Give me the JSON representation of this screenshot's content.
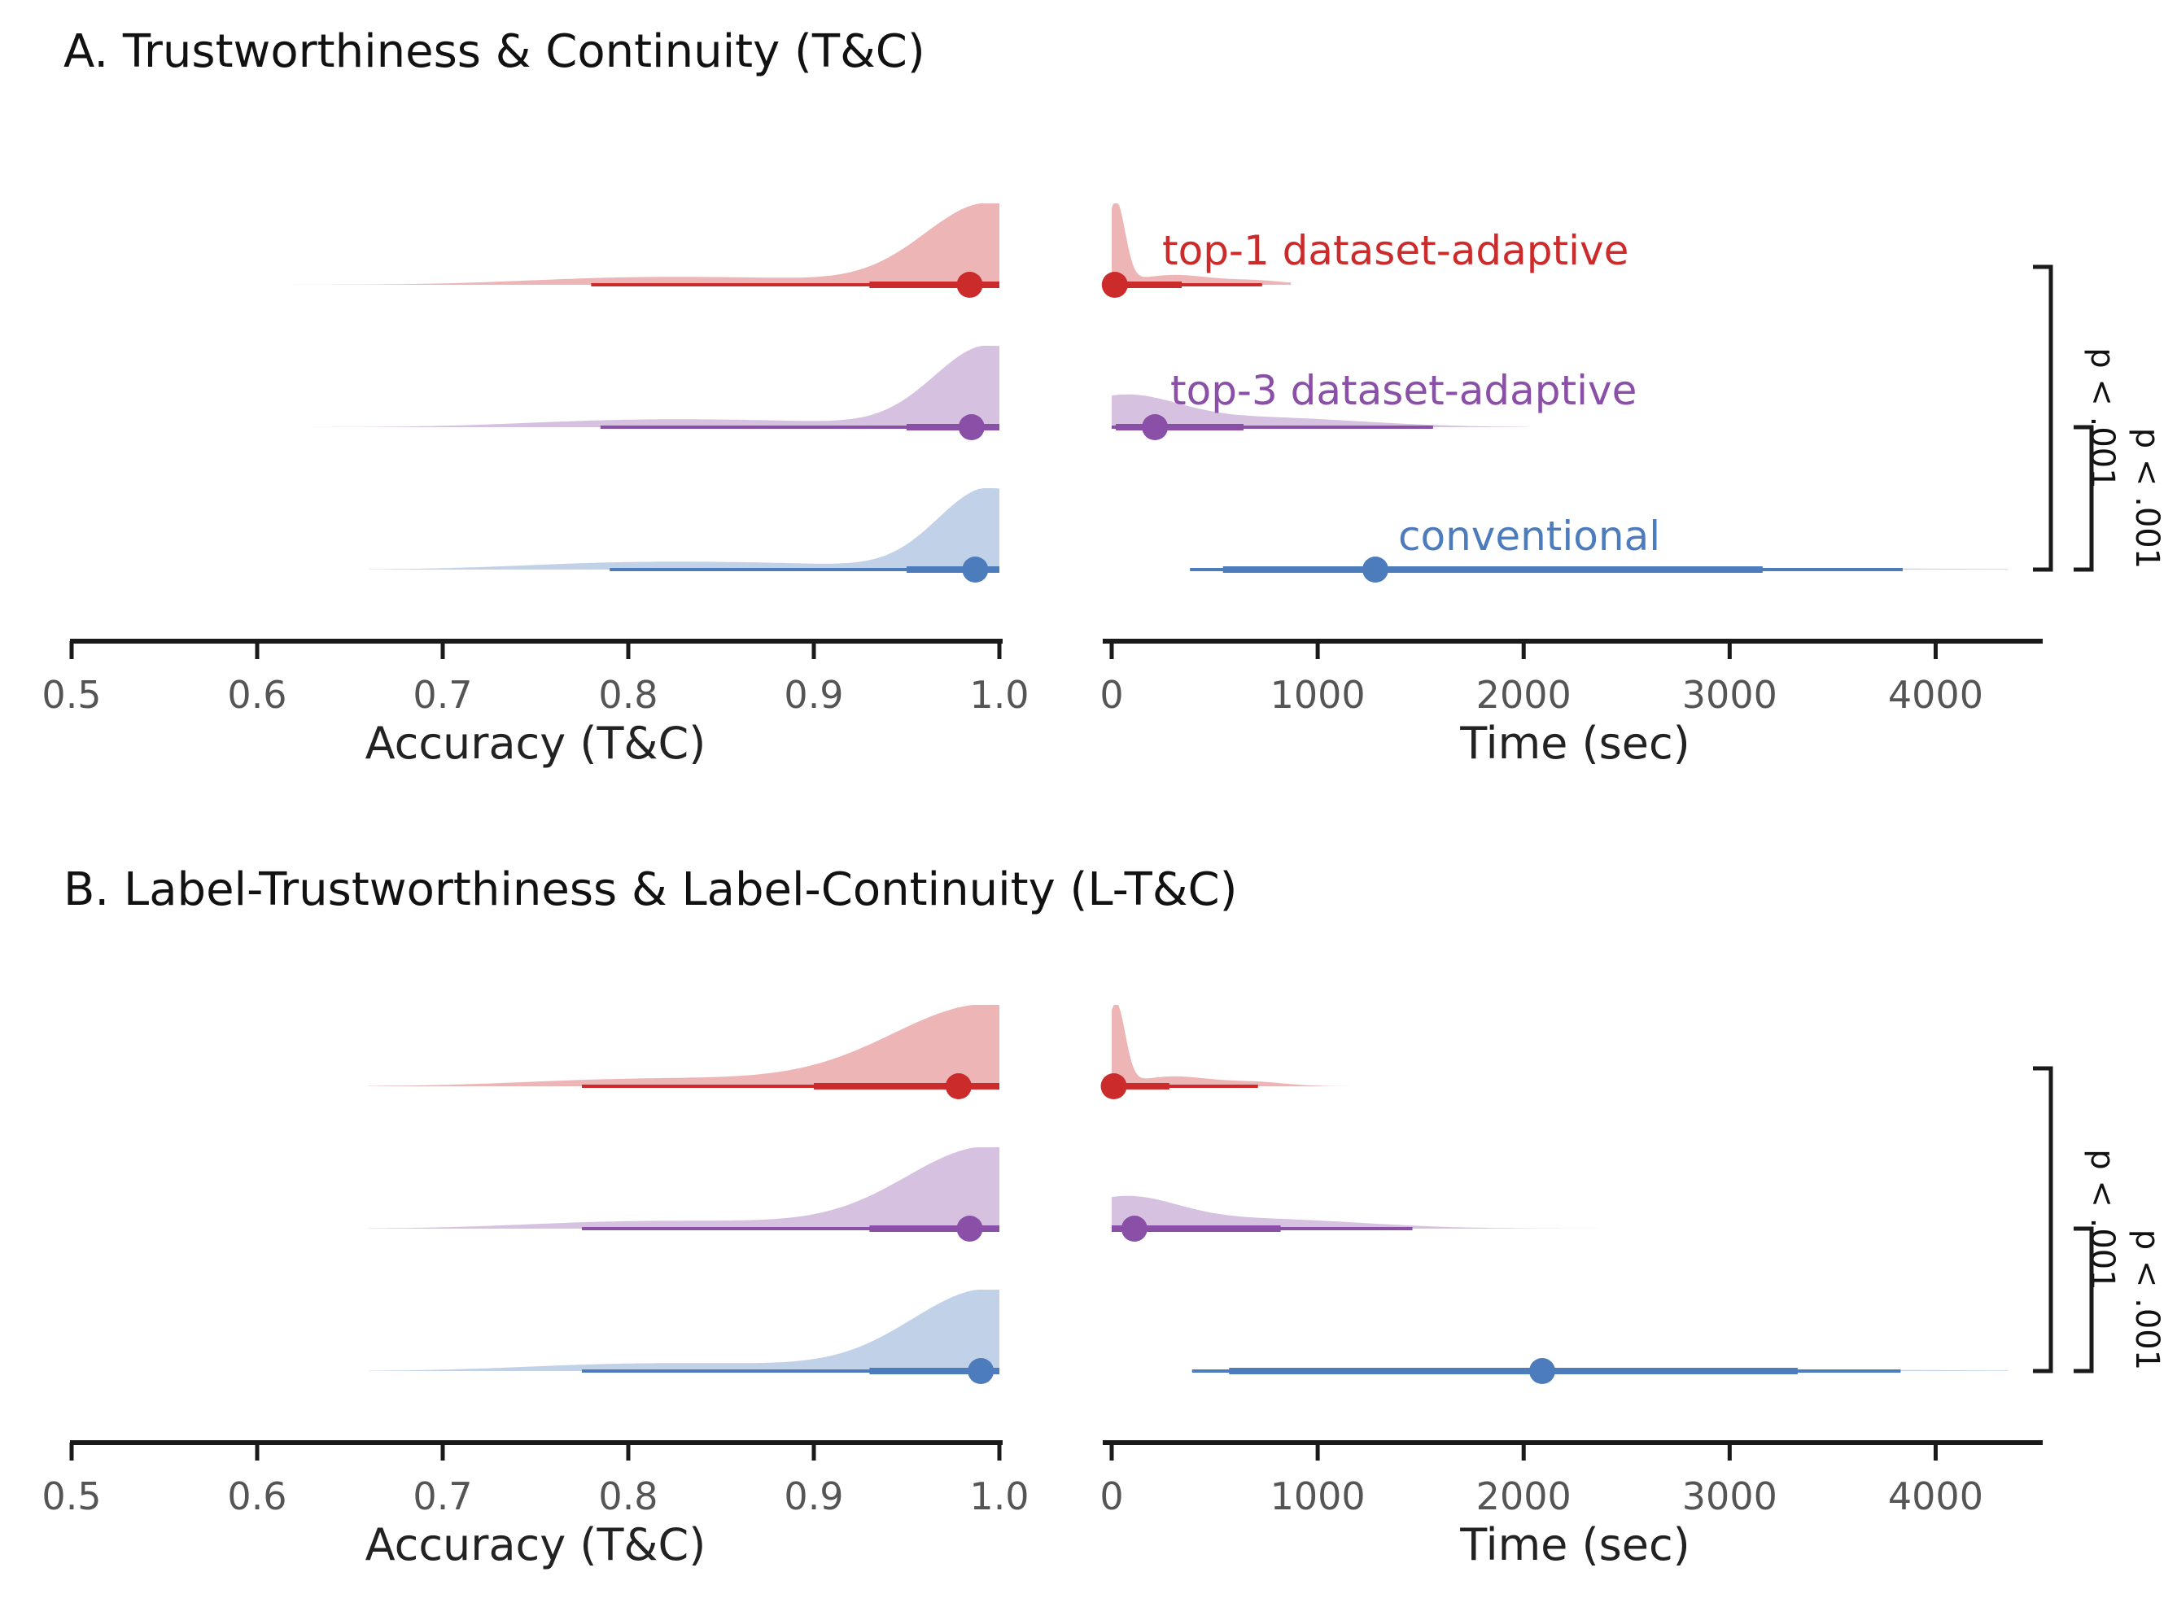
{
  "colors": {
    "top1": "#cc2b2b",
    "top3": "#8a4fa6",
    "conventional": "#4d7cbd",
    "axis": "#1a1a1a",
    "tick_text": "#555555"
  },
  "chart_data": [
    {
      "panel_title": "A. Trustworthiness & Continuity (T&C)",
      "subplots": [
        {
          "type": "halfeye",
          "xlabel": "Accuracy (T&C)",
          "xlim": [
            0.5,
            1.0
          ],
          "ticks": [
            "0.5",
            "0.6",
            "0.7",
            "0.8",
            "0.9",
            "1.0"
          ],
          "series": [
            {
              "name": "top-1 dataset-adaptive",
              "color_key": "top1",
              "median": 0.984,
              "interval_66": [
                0.93,
                1.0
              ],
              "interval_95": [
                0.78,
                1.0
              ],
              "range": [
                0.58,
                1.0
              ]
            },
            {
              "name": "top-3 dataset-adaptive",
              "color_key": "top3",
              "median": 0.985,
              "interval_66": [
                0.95,
                1.0
              ],
              "interval_95": [
                0.785,
                1.0
              ],
              "range": [
                0.63,
                1.0
              ]
            },
            {
              "name": "conventional",
              "color_key": "conventional",
              "median": 0.987,
              "interval_66": [
                0.95,
                1.0
              ],
              "interval_95": [
                0.79,
                1.0
              ],
              "range": [
                0.66,
                1.0
              ]
            }
          ]
        },
        {
          "type": "halfeye",
          "xlabel": "Time (sec)",
          "xlim": [
            0,
            4500
          ],
          "ticks": [
            "0",
            "1000",
            "2000",
            "3000",
            "4000"
          ],
          "series": [
            {
              "name": "top-1 dataset-adaptive",
              "color_key": "top1",
              "median": 15,
              "interval_66": [
                0,
                340
              ],
              "interval_95": [
                0,
                730
              ],
              "range": [
                0,
                870
              ]
            },
            {
              "name": "top-3 dataset-adaptive",
              "color_key": "top3",
              "median": 210,
              "interval_66": [
                20,
                640
              ],
              "interval_95": [
                0,
                1560
              ],
              "range": [
                0,
                2020
              ]
            },
            {
              "name": "conventional",
              "color_key": "conventional",
              "median": 1280,
              "interval_66": [
                540,
                3160
              ],
              "interval_95": [
                380,
                3840
              ],
              "range": [
                380,
                4350
              ]
            }
          ]
        }
      ],
      "comparisons": [
        {
          "label": "p < .001",
          "between": [
            "top-1 dataset-adaptive",
            "conventional"
          ]
        },
        {
          "label": "p < .001",
          "between": [
            "top-3 dataset-adaptive",
            "conventional"
          ]
        }
      ]
    },
    {
      "panel_title": "B. Label-Trustworthiness & Label-Continuity (L-T&C)",
      "subplots": [
        {
          "type": "halfeye",
          "xlabel": "Accuracy (T&C)",
          "xlim": [
            0.5,
            1.0
          ],
          "ticks": [
            "0.5",
            "0.6",
            "0.7",
            "0.8",
            "0.9",
            "1.0"
          ],
          "series": [
            {
              "name": "top-1 dataset-adaptive",
              "color_key": "top1",
              "median": 0.978,
              "interval_66": [
                0.9,
                1.0
              ],
              "interval_95": [
                0.775,
                1.0
              ],
              "range": [
                0.66,
                1.0
              ]
            },
            {
              "name": "top-3 dataset-adaptive",
              "color_key": "top3",
              "median": 0.984,
              "interval_66": [
                0.93,
                1.0
              ],
              "interval_95": [
                0.775,
                1.0
              ],
              "range": [
                0.66,
                1.0
              ]
            },
            {
              "name": "conventional",
              "color_key": "conventional",
              "median": 0.99,
              "interval_66": [
                0.93,
                1.0
              ],
              "interval_95": [
                0.775,
                1.0
              ],
              "range": [
                0.66,
                1.0
              ]
            }
          ]
        },
        {
          "type": "halfeye",
          "xlabel": "Time (sec)",
          "xlim": [
            0,
            4500
          ],
          "ticks": [
            "0",
            "1000",
            "2000",
            "3000",
            "4000"
          ],
          "series": [
            {
              "name": "top-1 dataset-adaptive",
              "color_key": "top1",
              "median": 10,
              "interval_66": [
                0,
                280
              ],
              "interval_95": [
                0,
                710
              ],
              "range": [
                0,
                1280
              ]
            },
            {
              "name": "top-3 dataset-adaptive",
              "color_key": "top3",
              "median": 110,
              "interval_66": [
                0,
                820
              ],
              "interval_95": [
                0,
                1460
              ],
              "range": [
                0,
                2450
              ]
            },
            {
              "name": "conventional",
              "color_key": "conventional",
              "median": 2090,
              "interval_66": [
                570,
                3330
              ],
              "interval_95": [
                390,
                3830
              ],
              "range": [
                390,
                4350
              ]
            }
          ]
        }
      ],
      "comparisons": [
        {
          "label": "p < .001",
          "between": [
            "top-1 dataset-adaptive",
            "conventional"
          ]
        },
        {
          "label": "p < .001",
          "between": [
            "top-3 dataset-adaptive",
            "conventional"
          ]
        }
      ]
    }
  ]
}
